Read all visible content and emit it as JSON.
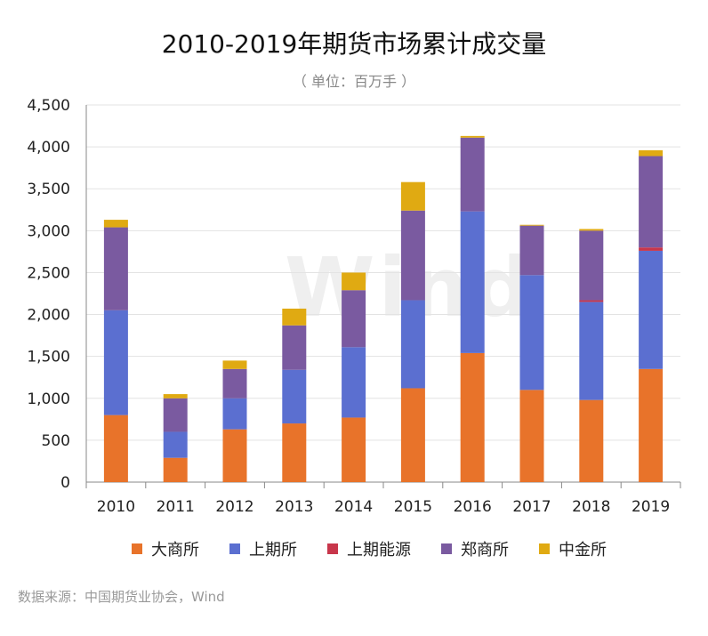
{
  "title": "2010-2019年期货市场累计成交量",
  "subtitle": "（ 单位：百万手 ）",
  "source": "数据来源：中国期货业协会，Wind",
  "watermark": "Wind",
  "chart_data": {
    "type": "bar",
    "stacked": true,
    "categories": [
      "2010",
      "2011",
      "2012",
      "2013",
      "2014",
      "2015",
      "2016",
      "2017",
      "2018",
      "2019"
    ],
    "ylim": [
      0,
      4500
    ],
    "yticks": [
      0,
      500,
      1000,
      1500,
      2000,
      2500,
      3000,
      3500,
      4000,
      4500
    ],
    "ytick_labels": [
      "0",
      "500",
      "1,000",
      "1,500",
      "2,000",
      "2,500",
      "3,000",
      "3,500",
      "4,000",
      "4,500"
    ],
    "grid": true,
    "legend_position": "bottom",
    "series": [
      {
        "name": "大商所",
        "color": "#e8732a",
        "values": [
          800,
          290,
          630,
          700,
          770,
          1120,
          1540,
          1100,
          980,
          1350
        ]
      },
      {
        "name": "上期所",
        "color": "#5b6fd0",
        "values": [
          1250,
          310,
          370,
          640,
          840,
          1050,
          1690,
          1370,
          1170,
          1410
        ]
      },
      {
        "name": "上期能源",
        "color": "#c8364b",
        "values": [
          0,
          0,
          0,
          0,
          0,
          0,
          0,
          0,
          20,
          40
        ]
      },
      {
        "name": "郑商所",
        "color": "#7a5aa0",
        "values": [
          990,
          400,
          350,
          530,
          680,
          1070,
          880,
          590,
          830,
          1090
        ]
      },
      {
        "name": "中金所",
        "color": "#e0aa12",
        "values": [
          90,
          50,
          100,
          200,
          210,
          340,
          20,
          10,
          20,
          70
        ]
      }
    ]
  }
}
